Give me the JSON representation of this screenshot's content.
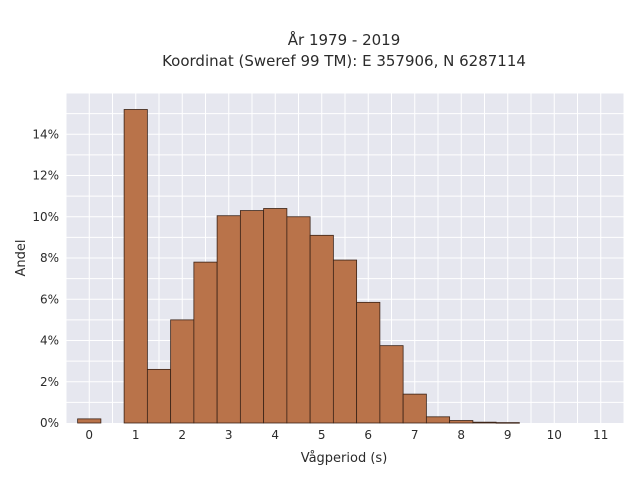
{
  "chart_data": {
    "type": "bar",
    "title_lines": [
      "År 1979 - 2019",
      "Koordinat (Sweref 99 TM): E 357906, N 6287114"
    ],
    "xlabel": "Vågperiod (s)",
    "ylabel": "Andel",
    "bin_width": 0.5,
    "bins": [
      {
        "x": 0.0,
        "value": 0.2
      },
      {
        "x": 0.5,
        "value": 0.0
      },
      {
        "x": 1.0,
        "value": 15.2
      },
      {
        "x": 1.5,
        "value": 2.6
      },
      {
        "x": 2.0,
        "value": 5.0
      },
      {
        "x": 2.5,
        "value": 7.8
      },
      {
        "x": 3.0,
        "value": 10.05
      },
      {
        "x": 3.5,
        "value": 10.3
      },
      {
        "x": 4.0,
        "value": 10.4
      },
      {
        "x": 4.5,
        "value": 10.0
      },
      {
        "x": 5.0,
        "value": 9.1
      },
      {
        "x": 5.5,
        "value": 7.9
      },
      {
        "x": 6.0,
        "value": 5.85
      },
      {
        "x": 6.5,
        "value": 3.75
      },
      {
        "x": 7.0,
        "value": 1.4
      },
      {
        "x": 7.5,
        "value": 0.3
      },
      {
        "x": 8.0,
        "value": 0.12
      },
      {
        "x": 8.5,
        "value": 0.04
      },
      {
        "x": 9.0,
        "value": 0.02
      }
    ],
    "xlim": [
      -0.5,
      11.5
    ],
    "ylim": [
      0,
      16
    ],
    "x_ticks": [
      "0",
      "1",
      "2",
      "3",
      "4",
      "5",
      "6",
      "7",
      "8",
      "9",
      "10",
      "11"
    ],
    "x_tick_values": [
      0,
      1,
      2,
      3,
      4,
      5,
      6,
      7,
      8,
      9,
      10,
      11
    ],
    "y_ticks": [
      "0%",
      "2%",
      "4%",
      "6%",
      "8%",
      "10%",
      "12%",
      "14%"
    ],
    "y_tick_values": [
      0,
      2,
      4,
      6,
      8,
      10,
      12,
      14
    ],
    "grid": true,
    "colors": {
      "bar_fill": "#b9734a",
      "bar_edge": "#3a2216",
      "plot_background": "#e6e7ef",
      "grid": "#ffffff"
    }
  }
}
